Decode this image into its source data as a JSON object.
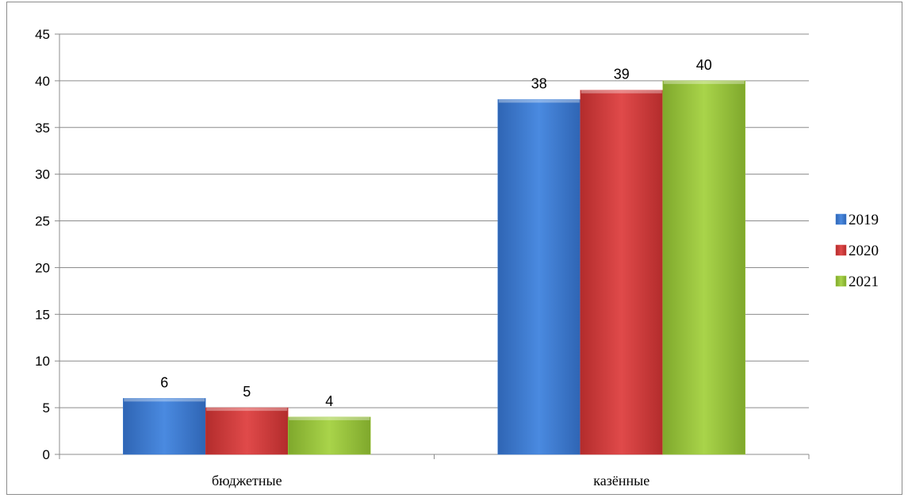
{
  "chart_data": {
    "type": "bar",
    "title": "",
    "xlabel": "",
    "ylabel": "",
    "categories": [
      "бюджетные",
      "казённые"
    ],
    "series": [
      {
        "name": "2019",
        "values": [
          6,
          38
        ],
        "color": "#3f80d8"
      },
      {
        "name": "2020",
        "values": [
          5,
          39
        ],
        "color": "#d83f3f"
      },
      {
        "name": "2021",
        "values": [
          4,
          40
        ],
        "color": "#9fc93f"
      }
    ],
    "ylim": [
      0,
      45
    ],
    "y_ticks": [
      "0",
      "5",
      "10",
      "15",
      "20",
      "25",
      "30",
      "35",
      "40",
      "45"
    ],
    "grid": true,
    "legend_position": "right",
    "data_labels": true
  }
}
